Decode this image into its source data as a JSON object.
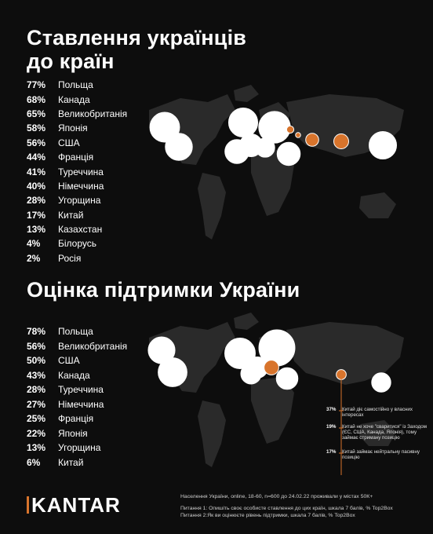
{
  "title1": "Ставлення українців до країн",
  "title2": "Оцінка підтримки України",
  "list1": [
    {
      "pct": "77%",
      "country": "Польща"
    },
    {
      "pct": "68%",
      "country": "Канада"
    },
    {
      "pct": "65%",
      "country": "Великобританія"
    },
    {
      "pct": "58%",
      "country": "Японія"
    },
    {
      "pct": "56%",
      "country": "США"
    },
    {
      "pct": "44%",
      "country": "Франція"
    },
    {
      "pct": "41%",
      "country": "Туреччина"
    },
    {
      "pct": "40%",
      "country": "Німеччина"
    },
    {
      "pct": "28%",
      "country": "Угорщина"
    },
    {
      "pct": "17%",
      "country": "Китай"
    },
    {
      "pct": "13%",
      "country": "Казахстан"
    },
    {
      "pct": "4%",
      "country": "Білорусь"
    },
    {
      "pct": "2%",
      "country": "Росія"
    }
  ],
  "list2": [
    {
      "pct": "78%",
      "country": "Польща"
    },
    {
      "pct": "56%",
      "country": "Великобританія"
    },
    {
      "pct": "50%",
      "country": "США"
    },
    {
      "pct": "43%",
      "country": "Канада"
    },
    {
      "pct": "28%",
      "country": "Туреччина"
    },
    {
      "pct": "27%",
      "country": "Німеччина"
    },
    {
      "pct": "25%",
      "country": "Франція"
    },
    {
      "pct": "22%",
      "country": "Японія"
    },
    {
      "pct": "13%",
      "country": "Угорщина"
    },
    {
      "pct": "6%",
      "country": "Китай"
    }
  ],
  "china_legend": [
    {
      "pct": "37%",
      "text": "Китай діє самостійно у власних інтересах"
    },
    {
      "pct": "19%",
      "text": "Китай не хоче \"сваритися\" із Заходом (ЄС, США, Канада, Японія), тому займає стриману позицію"
    },
    {
      "pct": "17%",
      "text": "Китай займає нейтральну пасивну позицію"
    }
  ],
  "footer": {
    "line1": "Населення України, online, 18-60, n=600 до 24.02.22 проживали у містах 50К+",
    "line2": "Питання 1: Опишіть своє особисте ставлення до цих країн, шкала 7 балів, % Top2Box",
    "line3": "Питання 2:Як ви оцінюєте рівень підтримки, шкала 7 балів, % Top2Box"
  },
  "logo": "KANTAR",
  "colors": {
    "background": "#0d0d0d",
    "land": "#2a2a2a",
    "accent": "#d8742c"
  },
  "chart_data": [
    {
      "type": "bubble-map",
      "title": "Ставлення українців до країн",
      "categories": [
        "Польща",
        "Канада",
        "Великобританія",
        "Японія",
        "США",
        "Франція",
        "Туреччина",
        "Німеччина",
        "Угорщина",
        "Китай",
        "Казахстан",
        "Білорусь",
        "Росія"
      ],
      "values": [
        77,
        68,
        65,
        58,
        56,
        44,
        41,
        40,
        28,
        17,
        13,
        4,
        2
      ],
      "unit": "%"
    },
    {
      "type": "bubble-map",
      "title": "Оцінка підтримки України",
      "categories": [
        "Польща",
        "Великобританія",
        "США",
        "Канада",
        "Туреччина",
        "Німеччина",
        "Франція",
        "Японія",
        "Угорщина",
        "Китай"
      ],
      "values": [
        78,
        56,
        50,
        43,
        28,
        27,
        25,
        22,
        13,
        6
      ],
      "unit": "%"
    }
  ]
}
